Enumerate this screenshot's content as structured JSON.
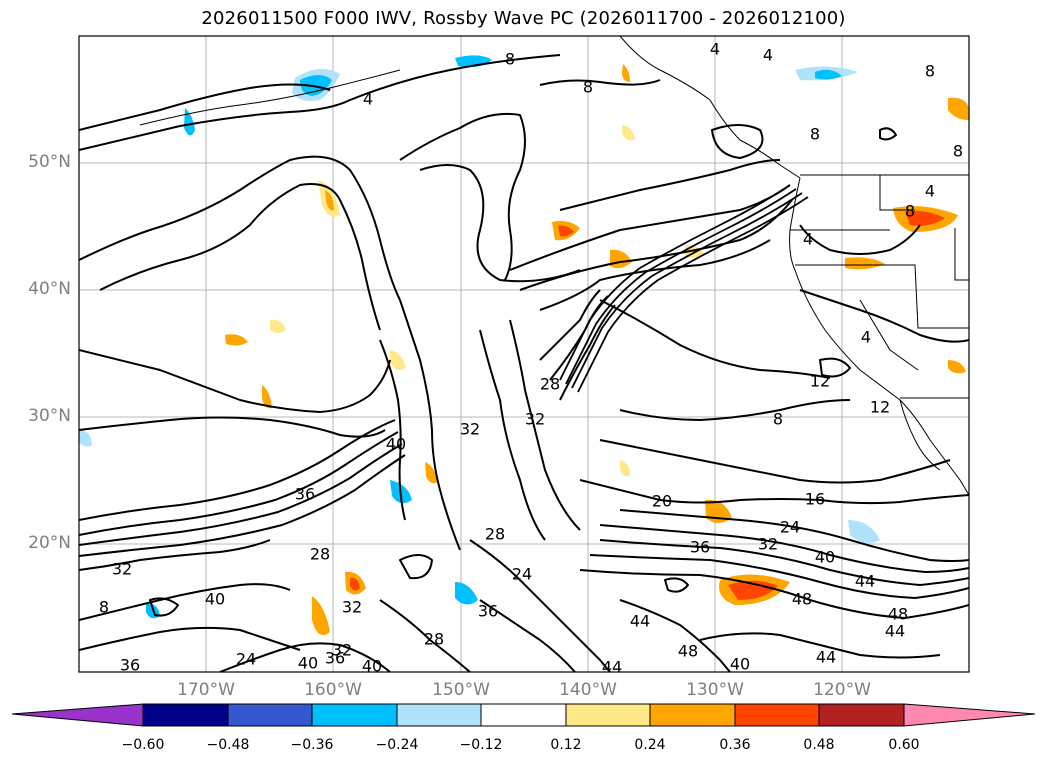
{
  "title": "2026011500 F000 IWV, Rossby Wave PC (2026011700 - 2026012100)",
  "latitude_labels": [
    "50°N",
    "40°N",
    "30°N",
    "20°N"
  ],
  "longitude_labels": [
    "170°W",
    "160°W",
    "150°W",
    "140°W",
    "130°W",
    "120°W"
  ],
  "contour_labels": [
    "4",
    "8",
    "8",
    "4",
    "4",
    "8",
    "8",
    "8",
    "4",
    "4",
    "8",
    "4",
    "12",
    "8",
    "12",
    "16",
    "20",
    "24",
    "32",
    "36",
    "40",
    "44",
    "48",
    "44",
    "44",
    "48",
    "48",
    "44",
    "40",
    "44",
    "28",
    "24",
    "28",
    "32",
    "32",
    "28",
    "40",
    "36",
    "28",
    "32",
    "40",
    "32",
    "36",
    "8",
    "36",
    "24",
    "40",
    "36",
    "40",
    "32"
  ],
  "colorbar": {
    "tick_labels": [
      "−0.60",
      "−0.48",
      "−0.36",
      "−0.24",
      "−0.12",
      "0.12",
      "0.24",
      "0.36",
      "0.48",
      "0.60"
    ],
    "colors": [
      "#9933cc",
      "#00008b",
      "#3558d0",
      "#00bfff",
      "#aee3fb",
      "#ffffff",
      "#ffe88a",
      "#ffa500",
      "#ff4500",
      "#b22222",
      "#ff88b0"
    ]
  },
  "colors": {
    "contour": "#000000",
    "grid": "#8c8c8c",
    "coast": "#000000"
  }
}
